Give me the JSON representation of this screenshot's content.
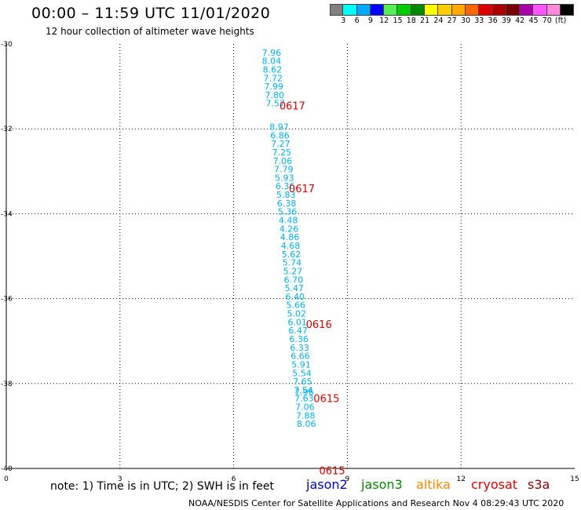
{
  "header": {
    "title": "00:00 – 11:59 UTC 11/01/2020",
    "subtitle": "12 hour collection of altimeter wave heights"
  },
  "colorbar": {
    "colors": [
      "#808080",
      "#00ffff",
      "#00aaff",
      "#0000ff",
      "#55ee55",
      "#00cc00",
      "#008800",
      "#ffff00",
      "#ffcc00",
      "#ffaa00",
      "#ff6600",
      "#dd0000",
      "#aa0000",
      "#770000",
      "#aa00aa",
      "#ff55ff",
      "#ff88dd",
      "#000000"
    ],
    "labels": [
      "3",
      "6",
      "9",
      "12",
      "15",
      "18",
      "21",
      "24",
      "27",
      "30",
      "33",
      "36",
      "39",
      "42",
      "45",
      "70",
      "(ft)"
    ]
  },
  "note": "note:  1) Time is in UTC;  2) SWH is in feet",
  "satellites": [
    {
      "name": "jason2",
      "color": "#0000cc"
    },
    {
      "name": "jason3",
      "color": "#008800"
    },
    {
      "name": "altika",
      "color": "#ff8800"
    },
    {
      "name": "cryosat",
      "color": "#dd0000"
    },
    {
      "name": "s3a",
      "color": "#880000"
    }
  ],
  "footer": "NOAA/NESDIS Center for Satellite Applications and Research     Nov  4 08:29:43 UTC 2020",
  "chart_data": {
    "type": "scatter",
    "xlim": [
      0,
      15
    ],
    "ylim": [
      -40,
      -30
    ],
    "xticks": [
      "0",
      "3",
      "6",
      "9",
      "12",
      "15"
    ],
    "yticks": [
      "-30",
      "-32",
      "-34",
      "-36",
      "-38",
      "-40"
    ],
    "grid": true,
    "swh_color": "#00b0f0",
    "time_color": "#dd0000",
    "swh_points": [
      {
        "x": 7.0,
        "y": -30.2,
        "label": "7.96"
      },
      {
        "x": 7.0,
        "y": -30.4,
        "label": "8.04"
      },
      {
        "x": 7.02,
        "y": -30.6,
        "label": "8.62"
      },
      {
        "x": 7.04,
        "y": -30.8,
        "label": "7.72"
      },
      {
        "x": 7.06,
        "y": -31.0,
        "label": "7.99"
      },
      {
        "x": 7.08,
        "y": -31.2,
        "label": "7.80"
      },
      {
        "x": 7.1,
        "y": -31.4,
        "label": "7.57"
      },
      {
        "x": 7.2,
        "y": -31.95,
        "label": "8.97"
      },
      {
        "x": 7.22,
        "y": -32.15,
        "label": "6.86"
      },
      {
        "x": 7.24,
        "y": -32.35,
        "label": "7.27"
      },
      {
        "x": 7.27,
        "y": -32.55,
        "label": "7.25"
      },
      {
        "x": 7.29,
        "y": -32.75,
        "label": "7.06"
      },
      {
        "x": 7.32,
        "y": -32.95,
        "label": "7.79"
      },
      {
        "x": 7.34,
        "y": -33.15,
        "label": "5.93"
      },
      {
        "x": 7.36,
        "y": -33.35,
        "label": "6.36"
      },
      {
        "x": 7.38,
        "y": -33.55,
        "label": "5.83"
      },
      {
        "x": 7.4,
        "y": -33.75,
        "label": "6.38"
      },
      {
        "x": 7.42,
        "y": -33.95,
        "label": "5.36"
      },
      {
        "x": 7.44,
        "y": -34.15,
        "label": "4.48"
      },
      {
        "x": 7.46,
        "y": -34.35,
        "label": "4.26"
      },
      {
        "x": 7.48,
        "y": -34.55,
        "label": "4.86"
      },
      {
        "x": 7.5,
        "y": -34.75,
        "label": "4.68"
      },
      {
        "x": 7.52,
        "y": -34.95,
        "label": "5.62"
      },
      {
        "x": 7.54,
        "y": -35.15,
        "label": "5.74"
      },
      {
        "x": 7.56,
        "y": -35.35,
        "label": "5.27"
      },
      {
        "x": 7.58,
        "y": -35.55,
        "label": "6.70"
      },
      {
        "x": 7.6,
        "y": -35.75,
        "label": "5.47"
      },
      {
        "x": 7.62,
        "y": -35.95,
        "label": "6.40"
      },
      {
        "x": 7.64,
        "y": -36.15,
        "label": "5.66"
      },
      {
        "x": 7.66,
        "y": -36.35,
        "label": "5.02"
      },
      {
        "x": 7.68,
        "y": -36.55,
        "label": "6.01"
      },
      {
        "x": 7.7,
        "y": -36.75,
        "label": "6.47"
      },
      {
        "x": 7.72,
        "y": -36.95,
        "label": "6.36"
      },
      {
        "x": 7.74,
        "y": -37.15,
        "label": "6.33"
      },
      {
        "x": 7.76,
        "y": -37.35,
        "label": "6.66"
      },
      {
        "x": 7.78,
        "y": -37.55,
        "label": "5.91"
      },
      {
        "x": 7.8,
        "y": -37.75,
        "label": "5.54"
      },
      {
        "x": 7.82,
        "y": -37.95,
        "label": "7.65"
      },
      {
        "x": 7.84,
        "y": -38.15,
        "label": "7.54"
      },
      {
        "x": 7.86,
        "y": -38.35,
        "label": "7.63"
      },
      {
        "x": 7.88,
        "y": -38.55,
        "label": "7.06"
      },
      {
        "x": 7.9,
        "y": -38.75,
        "label": "7.88"
      },
      {
        "x": 7.92,
        "y": -38.95,
        "label": "8.06"
      },
      {
        "x": 7.86,
        "y": -38.2,
        "label": "7.96"
      }
    ],
    "time_labels": [
      {
        "x": 7.55,
        "y": -31.45,
        "label": "0617"
      },
      {
        "x": 7.8,
        "y": -33.4,
        "label": "0617"
      },
      {
        "x": 8.25,
        "y": -36.6,
        "label": "0616"
      },
      {
        "x": 8.45,
        "y": -38.35,
        "label": "0615"
      },
      {
        "x": 8.6,
        "y": -40.05,
        "label": "0615"
      }
    ]
  }
}
